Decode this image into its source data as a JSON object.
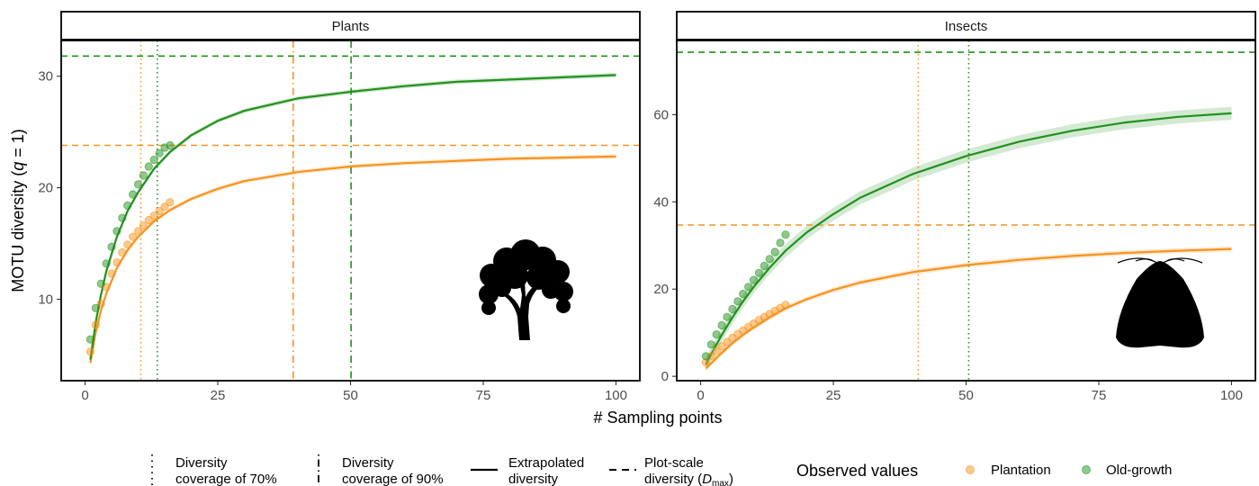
{
  "chart_data": {
    "type": "line",
    "xlabel": "# Sampling points",
    "ylabel_parts": [
      "MOTU diversity (",
      "q",
      " = 1)"
    ],
    "xticks": [
      0,
      25,
      50,
      75,
      100
    ],
    "xlim": [
      -4.5,
      104.5
    ],
    "colors": {
      "Plantation": "#f7931e",
      "Old-growth": "#22911e"
    },
    "panels": [
      {
        "title": "Plants",
        "ylim": [
          2.7,
          33.2
        ],
        "yticks": [
          10,
          20,
          30
        ],
        "dmax": {
          "Plantation": 23.8,
          "Old-growth": 31.8
        },
        "coverage70": {
          "Plantation": 10.5,
          "Old-growth": 13.6
        },
        "coverage90": {
          "Plantation": 39.2,
          "Old-growth": 50.1
        },
        "extrapolated": [
          {
            "name": "Plantation",
            "x": [
              1,
              2,
              3,
              4,
              6,
              8,
              10,
              13,
              16,
              20,
              25,
              30,
              40,
              50,
              60,
              70,
              80,
              90,
              100
            ],
            "y": [
              4.3,
              7.0,
              9.0,
              10.5,
              12.8,
              14.4,
              15.6,
              17.0,
              18.0,
              19.0,
              19.9,
              20.6,
              21.4,
              21.9,
              22.2,
              22.4,
              22.6,
              22.7,
              22.8
            ],
            "band": 0.2
          },
          {
            "name": "Old-growth",
            "x": [
              1,
              2,
              3,
              4,
              6,
              8,
              10,
              13,
              16,
              20,
              25,
              30,
              40,
              50,
              60,
              70,
              80,
              90,
              100
            ],
            "y": [
              4.6,
              7.9,
              10.4,
              12.5,
              15.6,
              17.9,
              19.6,
              21.7,
              23.2,
              24.7,
              26.0,
              26.9,
              28.0,
              28.6,
              29.1,
              29.5,
              29.7,
              29.9,
              30.1
            ],
            "band": 0.2
          }
        ],
        "observed": [
          {
            "name": "Plantation",
            "x": [
              1,
              2,
              3,
              4,
              5,
              6,
              7,
              8,
              9,
              10,
              11,
              12,
              13,
              14,
              15,
              16
            ],
            "y": [
              5.3,
              7.7,
              9.6,
              11.1,
              12.3,
              13.3,
              14.2,
              14.9,
              15.6,
              16.1,
              16.6,
              17.1,
              17.5,
              17.9,
              18.3,
              18.7
            ]
          },
          {
            "name": "Old-growth",
            "x": [
              1,
              2,
              3,
              4,
              5,
              6,
              7,
              8,
              9,
              10,
              11,
              12,
              13,
              14,
              15,
              16
            ],
            "y": [
              6.4,
              9.2,
              11.4,
              13.2,
              14.7,
              16.1,
              17.3,
              18.4,
              19.4,
              20.3,
              21.1,
              21.9,
              22.5,
              23.1,
              23.6,
              23.8
            ]
          }
        ]
      },
      {
        "title": "Insects",
        "ylim": [
          -1.0,
          77.0
        ],
        "yticks": [
          0,
          20,
          40,
          60
        ],
        "dmax": {
          "Plantation": 34.7,
          "Old-growth": 74.3
        },
        "coverage70": {
          "Plantation": 41.0,
          "Old-growth": 50.5
        },
        "coverage90": {},
        "extrapolated": [
          {
            "name": "Plantation",
            "x": [
              1,
              2,
              4,
              6,
              8,
              10,
              13,
              16,
              20,
              25,
              30,
              40,
              50,
              60,
              70,
              80,
              90,
              100
            ],
            "y": [
              1.8,
              3.0,
              5.4,
              7.6,
              9.5,
              11.2,
              13.5,
              15.6,
              17.7,
              19.8,
              21.5,
              23.9,
              25.5,
              26.7,
              27.6,
              28.3,
              28.8,
              29.2
            ],
            "band": 0.6
          },
          {
            "name": "Old-growth",
            "x": [
              1,
              2,
              4,
              6,
              8,
              10,
              13,
              16,
              20,
              25,
              30,
              40,
              50,
              60,
              70,
              80,
              90,
              100
            ],
            "y": [
              2.7,
              5.1,
              9.5,
              13.5,
              17.2,
              20.5,
              24.9,
              28.8,
              33.0,
              37.2,
              40.9,
              46.4,
              50.5,
              53.8,
              56.3,
              58.2,
              59.5,
              60.3
            ],
            "band": 1.5
          }
        ],
        "observed": [
          {
            "name": "Plantation",
            "x": [
              1,
              2,
              3,
              4,
              5,
              6,
              7,
              8,
              9,
              10,
              11,
              12,
              13,
              14,
              15,
              16
            ],
            "y": [
              3.2,
              4.6,
              5.8,
              6.9,
              7.9,
              8.8,
              9.7,
              10.5,
              11.3,
              12.1,
              12.9,
              13.6,
              14.3,
              15.0,
              15.7,
              16.4
            ]
          },
          {
            "name": "Old-growth",
            "x": [
              1,
              2,
              3,
              4,
              5,
              6,
              7,
              8,
              9,
              10,
              11,
              12,
              13,
              14,
              15,
              16
            ],
            "y": [
              4.6,
              7.3,
              9.6,
              11.7,
              13.6,
              15.4,
              17.2,
              18.9,
              20.5,
              22.1,
              23.7,
              25.3,
              26.9,
              28.5,
              30.6,
              32.5
            ]
          }
        ]
      }
    ],
    "legend": {
      "position": "bottom",
      "linetype_items": [
        {
          "style": "dotted",
          "label_lines": [
            "Diversity",
            "coverage of 70%"
          ]
        },
        {
          "style": "dotdash",
          "label_lines": [
            "Diversity",
            "coverage of 90%"
          ]
        },
        {
          "style": "solid",
          "label_lines": [
            "Extrapolated",
            "diversity"
          ]
        },
        {
          "style": "dashed",
          "label_lines": [
            "Plot-scale",
            "diversity (D_max)"
          ]
        }
      ],
      "color_title": "Observed values",
      "color_items": [
        "Plantation",
        "Old-growth"
      ]
    },
    "icons": [
      "tree-silhouette-icon",
      "moth-silhouette-icon"
    ]
  }
}
